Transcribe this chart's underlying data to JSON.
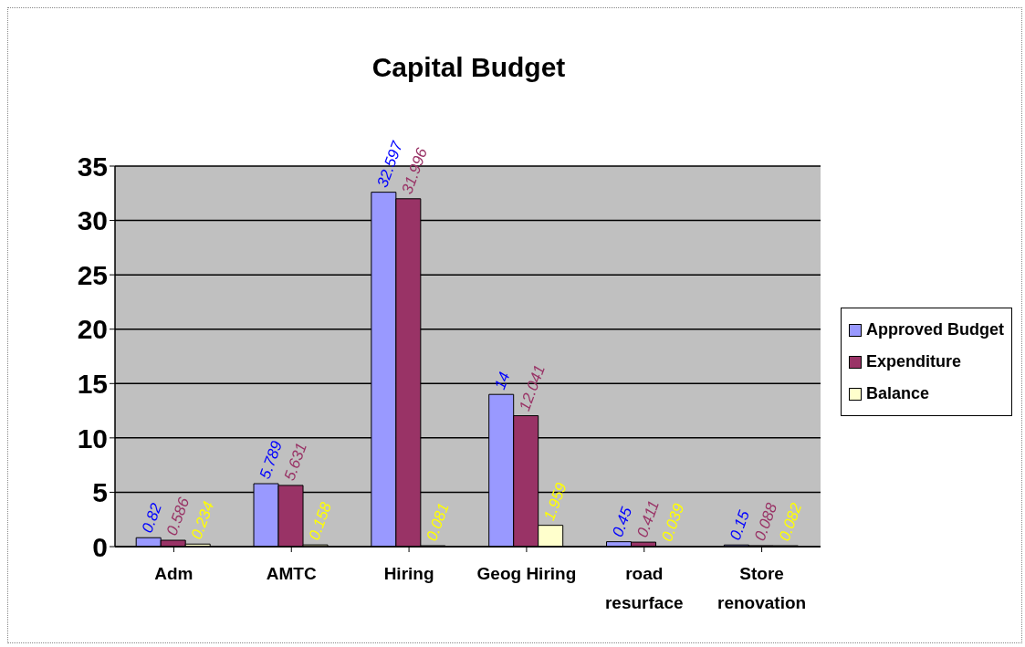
{
  "chart_data": {
    "type": "bar",
    "title": "Capital Budget",
    "categories": [
      "Adm",
      "AMTC",
      "Hiring",
      "Geog Hiring",
      "road resurface",
      "Store renovation"
    ],
    "series": [
      {
        "name": "Approved Budget",
        "color": "#9999ff",
        "values": [
          0.82,
          5.789,
          32.597,
          14,
          0.45,
          0.15
        ]
      },
      {
        "name": "Expenditure",
        "color": "#993366",
        "values": [
          0.586,
          5.631,
          31.996,
          12.041,
          0.411,
          0.088
        ]
      },
      {
        "name": "Balance",
        "color": "#ffffcc",
        "values": [
          0.234,
          0.158,
          0.081,
          1.959,
          0.039,
          0.082
        ]
      }
    ],
    "ylim": [
      0,
      35
    ],
    "yticks": [
      0,
      5,
      10,
      15,
      20,
      25,
      30,
      35
    ],
    "grid": "y",
    "legend": "right",
    "data_labels": true
  }
}
